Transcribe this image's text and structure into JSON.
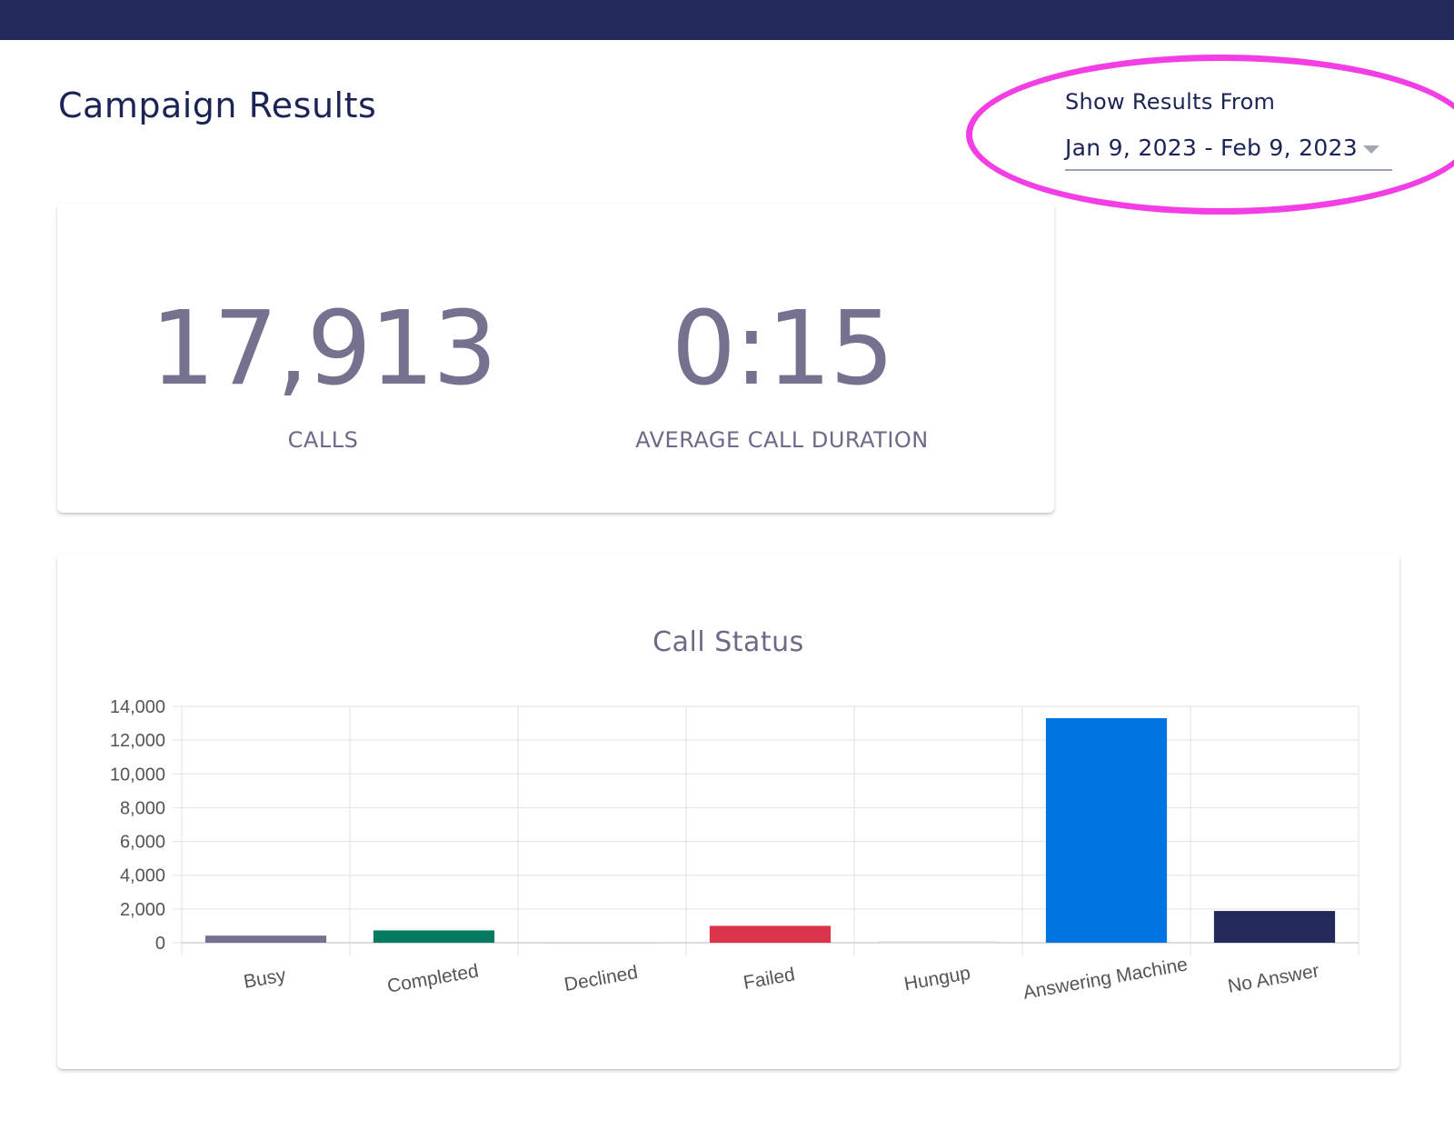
{
  "header": {
    "title": "Campaign Results"
  },
  "filter": {
    "label": "Show Results From",
    "value": "Jan 9, 2023 - Feb 9, 2023"
  },
  "stats": {
    "calls": {
      "value": "17,913",
      "label": "CALLS"
    },
    "duration": {
      "value": "0:15",
      "label": "AVERAGE CALL DURATION"
    }
  },
  "chart_title": "Call Status",
  "chart_data": {
    "type": "bar",
    "title": "Call Status",
    "categories": [
      "Busy",
      "Completed",
      "Declined",
      "Failed",
      "Hungup",
      "Answering Machine",
      "No Answer"
    ],
    "values": [
      420,
      730,
      20,
      1000,
      80,
      13300,
      1880
    ],
    "colors": [
      "#757290",
      "#047b5e",
      "#d8d8de",
      "#d9344a",
      "#d8d8de",
      "#0074e0",
      "#222a5b"
    ],
    "ylim": [
      0,
      14000
    ],
    "yticks": [
      0,
      2000,
      4000,
      6000,
      8000,
      10000,
      12000,
      14000
    ],
    "ytick_labels": [
      "0",
      "2,000",
      "4,000",
      "6,000",
      "8,000",
      "10,000",
      "12,000",
      "14,000"
    ],
    "xlabel": "",
    "ylabel": "",
    "grid": true,
    "legend": "none"
  }
}
